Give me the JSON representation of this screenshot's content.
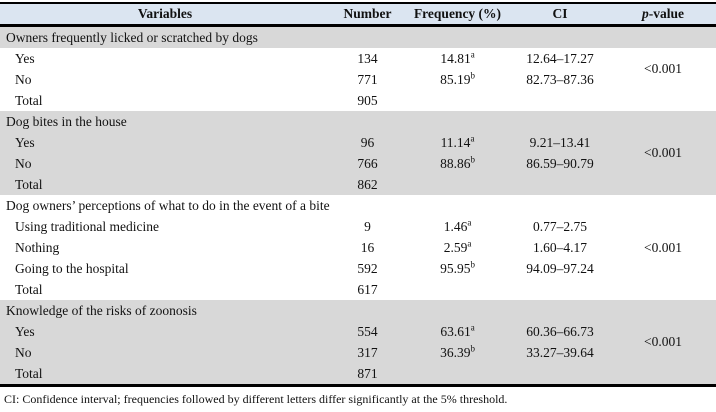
{
  "colors": {
    "header_bg": "#dbe5f1",
    "shaded_band_bg": "#d8d8d8",
    "border": "#000000",
    "page_bg": "#ffffff"
  },
  "header": {
    "variables": "Variables",
    "number": "Number",
    "frequency": "Frequency (%)",
    "ci": "CI",
    "p_italic": "p",
    "p_rest": "-value"
  },
  "sections": [
    {
      "title": "Owners frequently licked or scratched by dogs",
      "title_shaded": true,
      "body_shaded": false,
      "p_value": "<0.001",
      "rows": [
        {
          "label": "Yes",
          "number": "134",
          "frequency": "14.81",
          "sup": "a",
          "ci": "12.64–17.27"
        },
        {
          "label": "No",
          "number": "771",
          "frequency": "85.19",
          "sup": "b",
          "ci": "82.73–87.36"
        }
      ],
      "total": {
        "label": "Total",
        "number": "905"
      }
    },
    {
      "title": "Dog bites in the house",
      "title_shaded": true,
      "body_shaded": true,
      "p_value": "<0.001",
      "rows": [
        {
          "label": "Yes",
          "number": "96",
          "frequency": "11.14",
          "sup": "a",
          "ci": "9.21–13.41"
        },
        {
          "label": "No",
          "number": "766",
          "frequency": "88.86",
          "sup": "b",
          "ci": "86.59–90.79"
        }
      ],
      "total": {
        "label": "Total",
        "number": "862"
      }
    },
    {
      "title": "Dog owners’ perceptions of what to do in the event of a bite",
      "title_shaded": false,
      "body_shaded": false,
      "p_value": "<0.001",
      "rows": [
        {
          "label": "Using traditional medicine",
          "number": "9",
          "frequency": "1.46",
          "sup": "a",
          "ci": "0.77–2.75"
        },
        {
          "label": "Nothing",
          "number": "16",
          "frequency": "2.59",
          "sup": "a",
          "ci": "1.60–4.17"
        },
        {
          "label": "Going to the hospital",
          "number": "592",
          "frequency": "95.95",
          "sup": "b",
          "ci": "94.09–97.24"
        }
      ],
      "total": {
        "label": "Total",
        "number": "617"
      }
    },
    {
      "title": "Knowledge of the risks of zoonosis",
      "title_shaded": true,
      "body_shaded": true,
      "p_value": "<0.001",
      "rows": [
        {
          "label": "Yes",
          "number": "554",
          "frequency": "63.61",
          "sup": "a",
          "ci": "60.36–66.73"
        },
        {
          "label": "No",
          "number": "317",
          "frequency": "36.39",
          "sup": "b",
          "ci": "33.27–39.64"
        }
      ],
      "total": {
        "label": "Total",
        "number": "871"
      }
    }
  ],
  "footnote": "CI: Confidence interval; frequencies followed by different letters differ significantly at the 5% threshold."
}
